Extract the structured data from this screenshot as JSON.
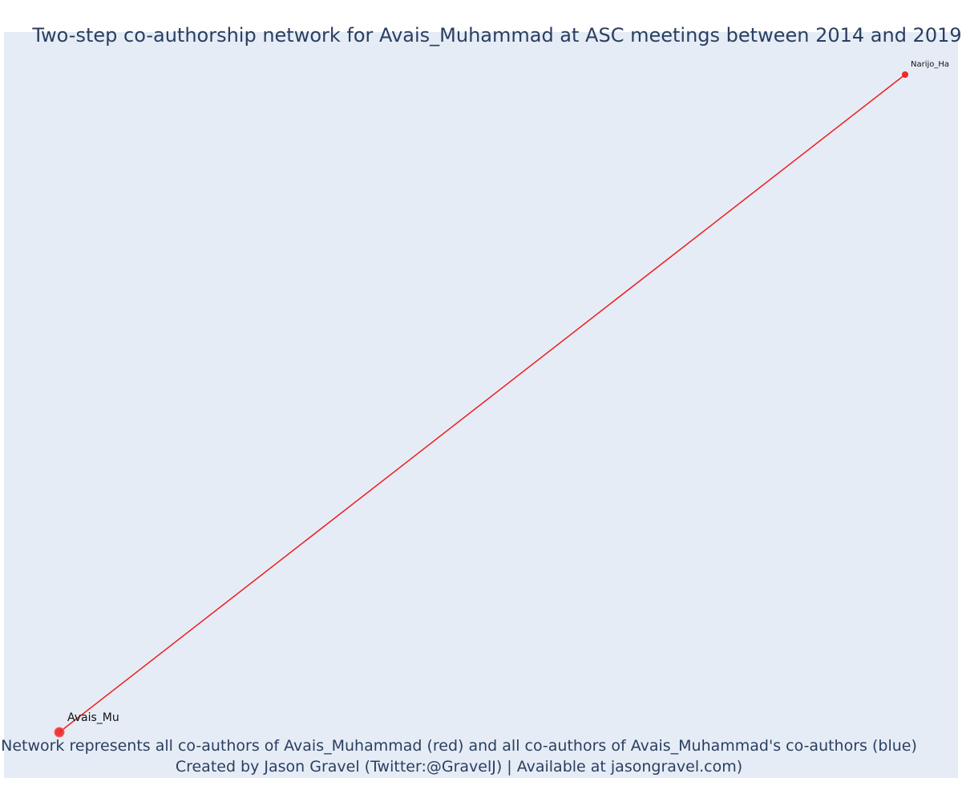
{
  "title": "Two-step co-authorship network for Avais_Muhammad at ASC meetings between 2014 and 2019",
  "caption": {
    "line1": "Network represents all co-authors of Avais_Muhammad (red) and all co-authors of Avais_Muhammad's co-authors (blue)",
    "line2": "Created by Jason Gravel (Twitter:@GravelJ) | Available at jasongravel.com)"
  },
  "colors": {
    "background": "#e5ecf6",
    "first_degree": "#ef1c1c",
    "second_degree": "#1f3fdf",
    "title_text": "#2a3f5f"
  },
  "chart_data": {
    "type": "network",
    "nodes": [
      {
        "id": "avais",
        "label": "Avais_Mu",
        "group": "focal",
        "x": 0.0,
        "y": 0.0
      },
      {
        "id": "narijo",
        "label": "Narijo_Ha",
        "group": "co-author",
        "x": 1.0,
        "y": 1.0
      }
    ],
    "edges": [
      {
        "source": "avais",
        "target": "narijo",
        "color": "red"
      }
    ],
    "grid": false
  }
}
